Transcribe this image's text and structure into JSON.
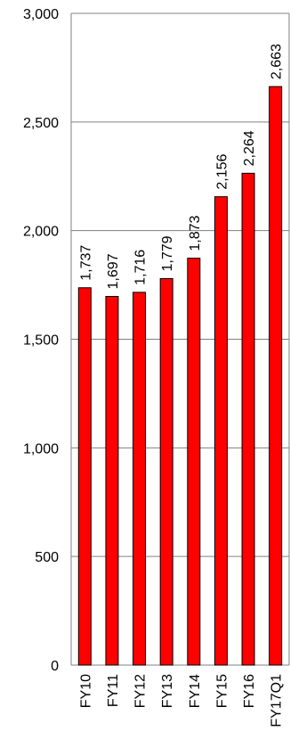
{
  "chart_data": {
    "type": "bar",
    "title": "",
    "xlabel": "",
    "ylabel": "",
    "categories": [
      "FY10",
      "FY11",
      "FY12",
      "FY13",
      "FY14",
      "FY15",
      "FY16",
      "FY17Q1"
    ],
    "values": [
      1737,
      1697,
      1716,
      1779,
      1873,
      2156,
      2264,
      2663
    ],
    "value_labels": [
      "1,737",
      "1,697",
      "1,716",
      "1,779",
      "1,873",
      "2,156",
      "2,264",
      "2,663"
    ],
    "ylim": [
      0,
      3000
    ],
    "yticks": [
      0,
      500,
      1000,
      1500,
      2000,
      2500,
      3000
    ],
    "ytick_labels": [
      "0",
      "500",
      "1,000",
      "1,500",
      "2,000",
      "2,500",
      "3,000"
    ],
    "grid": true,
    "legend": "none",
    "bar_color": "#ff0000",
    "bar_edge_color": "#000000",
    "grid_color": "#808080"
  }
}
